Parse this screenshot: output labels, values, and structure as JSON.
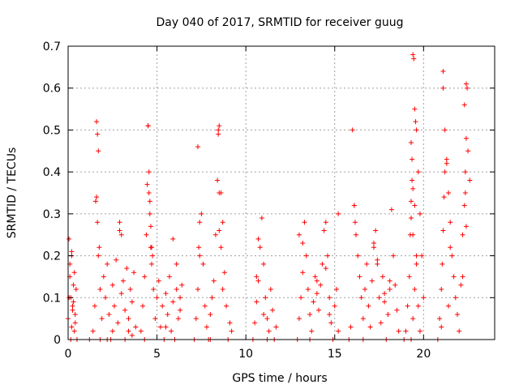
{
  "chart_data": {
    "type": "scatter",
    "title": "Day 040 of 2017, SRMTID for receiver guug",
    "xlabel": "GPS time / hours",
    "ylabel": "SRMTID / TECUs",
    "xlim": [
      0,
      24
    ],
    "ylim": [
      0,
      0.7
    ],
    "xticks": [
      0,
      5,
      10,
      15,
      20
    ],
    "yticks": [
      0,
      0.1,
      0.2,
      0.3,
      0.4,
      0.5,
      0.6,
      0.7
    ],
    "ytick_labels": [
      "0",
      "0.1",
      "0.2",
      "0.3",
      "0.4",
      "0.5",
      "0.6",
      "0.7"
    ],
    "grid": true,
    "marker": "+",
    "color": "#ff0000",
    "series": [
      {
        "x": [
          0.0,
          0.05,
          0.1,
          0.15,
          0.2,
          0.25,
          0.3,
          0.35,
          0.4,
          0.45,
          0.5,
          0.1,
          0.2,
          0.3,
          0.15,
          0.25,
          0.35,
          0.05,
          0.2,
          0.4,
          1.2,
          1.4,
          1.5,
          1.55,
          1.6,
          1.65,
          1.7,
          1.75,
          1.8,
          1.9,
          2.0,
          2.1,
          2.2,
          2.3,
          2.4,
          2.5,
          2.6,
          2.7,
          2.8,
          2.9,
          3.0,
          3.1,
          3.2,
          3.3,
          3.4,
          3.5,
          3.6,
          3.7,
          3.8,
          1.6,
          1.65,
          1.7,
          2.9,
          3.0,
          3.2,
          2.2,
          1.8,
          2.5,
          3.4,
          3.6,
          4.1,
          4.2,
          4.3,
          4.4,
          4.45,
          4.5,
          4.55,
          4.6,
          4.65,
          4.7,
          4.8,
          4.9,
          5.0,
          5.1,
          5.2,
          5.3,
          5.4,
          5.5,
          5.6,
          5.7,
          5.8,
          5.9,
          6.0,
          6.1,
          6.2,
          6.3,
          6.4,
          4.5,
          4.55,
          4.6,
          4.65,
          4.7,
          4.75,
          5.9,
          6.1,
          4.3,
          5.5,
          6.3,
          7.1,
          7.2,
          7.3,
          7.35,
          7.4,
          7.5,
          7.6,
          7.7,
          7.8,
          7.9,
          8.0,
          8.1,
          8.2,
          8.3,
          8.4,
          8.45,
          8.5,
          8.6,
          8.7,
          8.8,
          8.9,
          9.0,
          9.1,
          9.2,
          7.3,
          8.45,
          8.5,
          8.5,
          8.6,
          8.7,
          7.4,
          8.0,
          10.4,
          10.5,
          10.6,
          10.7,
          10.8,
          10.9,
          11.0,
          11.1,
          11.2,
          11.3,
          11.4,
          11.5,
          11.6,
          11.7,
          10.7,
          10.6,
          11.0,
          11.2,
          12.9,
          13.0,
          13.1,
          13.2,
          13.3,
          13.4,
          13.5,
          13.6,
          13.7,
          13.8,
          13.9,
          14.0,
          14.1,
          14.2,
          14.3,
          14.4,
          14.5,
          14.6,
          14.7,
          14.8,
          14.9,
          15.0,
          15.1,
          15.2,
          13.0,
          13.2,
          14.5,
          14.7,
          15.2,
          13.6,
          14.0,
          15.8,
          15.9,
          16.0,
          16.1,
          16.2,
          16.3,
          16.4,
          16.5,
          16.6,
          16.7,
          16.8,
          16.9,
          17.0,
          17.1,
          17.2,
          17.3,
          17.4,
          17.5,
          17.6,
          17.7,
          17.8,
          17.9,
          18.0,
          18.1,
          18.2,
          18.3,
          18.4,
          18.5,
          18.6,
          16.1,
          16.15,
          17.2,
          17.4,
          18.1,
          16.6,
          17.8,
          18.9,
          19.0,
          19.1,
          19.2,
          19.25,
          19.3,
          19.35,
          19.4,
          19.45,
          19.5,
          19.55,
          19.6,
          19.7,
          19.8,
          19.9,
          20.0,
          19.3,
          19.35,
          19.4,
          19.3,
          19.4,
          19.5,
          19.6,
          19.5,
          19.4,
          19.3,
          19.6,
          19.7,
          19.8,
          20.8,
          20.9,
          21.0,
          21.05,
          21.1,
          21.15,
          21.2,
          21.3,
          21.4,
          21.5,
          21.6,
          21.7,
          21.8,
          21.9,
          22.0,
          22.1,
          22.2,
          22.3,
          22.35,
          22.4,
          22.45,
          22.5,
          22.6,
          21.1,
          21.1,
          21.2,
          21.3,
          22.3,
          22.4,
          22.35,
          22.4,
          21.5,
          21.4,
          22.2,
          21.0
        ],
        "y": [
          0.05,
          0.24,
          0.15,
          0.1,
          0.21,
          0.08,
          0.13,
          0.02,
          0.06,
          0.12,
          0.0,
          0.18,
          0.03,
          0.09,
          0.0,
          0.07,
          0.16,
          0.1,
          0.2,
          0.04,
          0.0,
          0.02,
          0.08,
          0.33,
          0.52,
          0.49,
          0.45,
          0.22,
          0.12,
          0.05,
          0.15,
          0.1,
          0.18,
          0.06,
          0.0,
          0.13,
          0.08,
          0.19,
          0.04,
          0.28,
          0.11,
          0.14,
          0.07,
          0.17,
          0.02,
          0.12,
          0.09,
          0.16,
          0.03,
          0.34,
          0.28,
          0.2,
          0.26,
          0.25,
          0.0,
          0.0,
          0.0,
          0.02,
          0.05,
          0.01,
          0.02,
          0.08,
          0.15,
          0.25,
          0.37,
          0.51,
          0.4,
          0.3,
          0.22,
          0.18,
          0.12,
          0.05,
          0.1,
          0.14,
          0.03,
          0.08,
          0.0,
          0.11,
          0.06,
          0.15,
          0.02,
          0.09,
          0.0,
          0.12,
          0.05,
          0.07,
          0.13,
          0.51,
          0.35,
          0.33,
          0.27,
          0.22,
          0.2,
          0.24,
          0.18,
          0.0,
          0.03,
          0.1,
          0.0,
          0.05,
          0.12,
          0.22,
          0.28,
          0.3,
          0.18,
          0.08,
          0.03,
          0.0,
          0.06,
          0.1,
          0.14,
          0.25,
          0.38,
          0.5,
          0.51,
          0.35,
          0.28,
          0.16,
          0.08,
          0.0,
          0.04,
          0.02,
          0.46,
          0.49,
          0.35,
          0.26,
          0.22,
          0.12,
          0.2,
          0.0,
          0.0,
          0.04,
          0.09,
          0.14,
          0.22,
          0.29,
          0.18,
          0.1,
          0.05,
          0.02,
          0.12,
          0.07,
          0.0,
          0.03,
          0.24,
          0.15,
          0.06,
          0.0,
          0.0,
          0.05,
          0.1,
          0.16,
          0.28,
          0.2,
          0.12,
          0.06,
          0.02,
          0.09,
          0.15,
          0.11,
          0.07,
          0.13,
          0.18,
          0.26,
          0.28,
          0.2,
          0.1,
          0.04,
          0.0,
          0.08,
          0.12,
          0.3,
          0.25,
          0.23,
          0.17,
          0.06,
          0.02,
          0.0,
          0.14,
          0.0,
          0.03,
          0.5,
          0.32,
          0.25,
          0.2,
          0.15,
          0.1,
          0.05,
          0.12,
          0.18,
          0.08,
          0.03,
          0.14,
          0.22,
          0.26,
          0.19,
          0.1,
          0.04,
          0.15,
          0.09,
          0.0,
          0.06,
          0.12,
          0.31,
          0.2,
          0.13,
          0.07,
          0.02,
          0.32,
          0.28,
          0.23,
          0.18,
          0.14,
          0.0,
          0.11,
          0.0,
          0.02,
          0.08,
          0.15,
          0.25,
          0.33,
          0.38,
          0.68,
          0.67,
          0.55,
          0.52,
          0.5,
          0.4,
          0.3,
          0.2,
          0.1,
          0.47,
          0.43,
          0.36,
          0.29,
          0.25,
          0.32,
          0.2,
          0.12,
          0.05,
          0.0,
          0.18,
          0.08,
          0.02,
          0.0,
          0.05,
          0.12,
          0.18,
          0.26,
          0.34,
          0.4,
          0.43,
          0.35,
          0.28,
          0.2,
          0.15,
          0.1,
          0.06,
          0.02,
          0.13,
          0.25,
          0.32,
          0.35,
          0.61,
          0.6,
          0.45,
          0.38,
          0.64,
          0.6,
          0.5,
          0.42,
          0.56,
          0.48,
          0.4,
          0.27,
          0.22,
          0.08,
          0.15,
          0.03
        ]
      }
    ]
  }
}
